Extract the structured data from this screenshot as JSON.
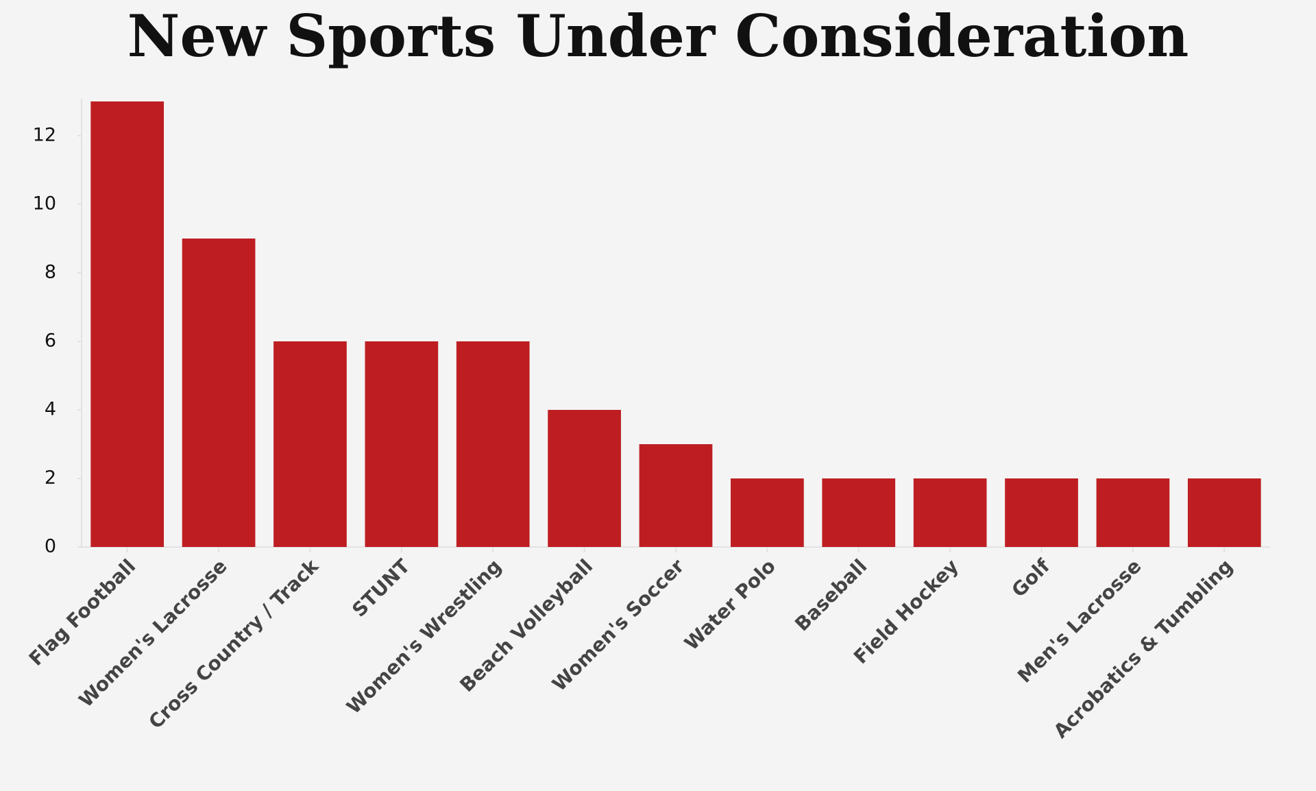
{
  "chart_data": {
    "type": "bar",
    "title": "New Sports Under Consideration",
    "categories": [
      "Flag Football",
      "Women's Lacrosse",
      "Cross Country / Track",
      "STUNT",
      "Women's Wrestling",
      "Beach Volleyball",
      "Women's Soccer",
      "Water Polo",
      "Baseball",
      "Field Hockey",
      "Golf",
      "Men's Lacrosse",
      "Acrobatics & Tumbling"
    ],
    "values": [
      13,
      9,
      6,
      6,
      6,
      4,
      3,
      2,
      2,
      2,
      2,
      2,
      2
    ],
    "color": "#be1e22",
    "ylim": [
      0,
      13
    ],
    "yticks": [
      0,
      2,
      4,
      6,
      8,
      10,
      12
    ],
    "grid": false
  }
}
